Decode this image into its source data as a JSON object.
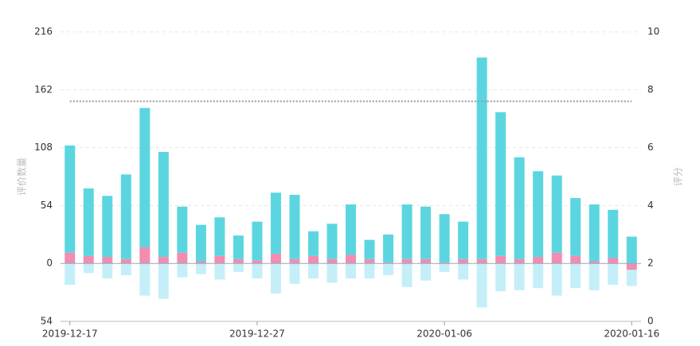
{
  "chart_data": {
    "type": "bar",
    "stacked": true,
    "categories": [
      "2019-12-17",
      null,
      null,
      null,
      null,
      null,
      null,
      null,
      null,
      null,
      "2019-12-27",
      null,
      null,
      null,
      null,
      null,
      null,
      null,
      null,
      null,
      "2020-01-06",
      null,
      null,
      null,
      null,
      null,
      null,
      null,
      null,
      null,
      "2020-01-16"
    ],
    "series": [
      {
        "color": "#f28cb1",
        "values": [
          10,
          7,
          6,
          4,
          15,
          6,
          10,
          2,
          7,
          4,
          3,
          9,
          4,
          7,
          4,
          8,
          4,
          1,
          4,
          4,
          1,
          4,
          4,
          7,
          4,
          6,
          10,
          7,
          2,
          5,
          -6
        ]
      },
      {
        "color": "#5bd6e0",
        "values": [
          100,
          63,
          57,
          79,
          130,
          98,
          43,
          34,
          36,
          22,
          36,
          57,
          60,
          23,
          33,
          47,
          18,
          26,
          51,
          49,
          45,
          35,
          188,
          134,
          95,
          80,
          72,
          54,
          53,
          45,
          25
        ]
      },
      {
        "color": "#c4eff9",
        "values": [
          -20,
          -9,
          -14,
          -11,
          -30,
          -33,
          -13,
          -10,
          -15,
          -8,
          -14,
          -28,
          -19,
          -14,
          -18,
          -14,
          -14,
          -11,
          -22,
          -16,
          -8,
          -15,
          -41,
          -26,
          -25,
          -23,
          -30,
          -23,
          -25,
          -20,
          -15
        ]
      }
    ],
    "ylabel": "评价数量",
    "y2label": "评分",
    "ylim": [
      -54,
      216
    ],
    "yticks": [
      {
        "value": -54,
        "label": "54"
      },
      0,
      54,
      108,
      162,
      216
    ],
    "y2lim": [
      0,
      10
    ],
    "y2ticks": [
      0,
      2,
      4,
      6,
      8,
      10
    ],
    "reference_line": {
      "value": 7.6,
      "axis": "y2",
      "color": "#999"
    },
    "grid": true
  }
}
